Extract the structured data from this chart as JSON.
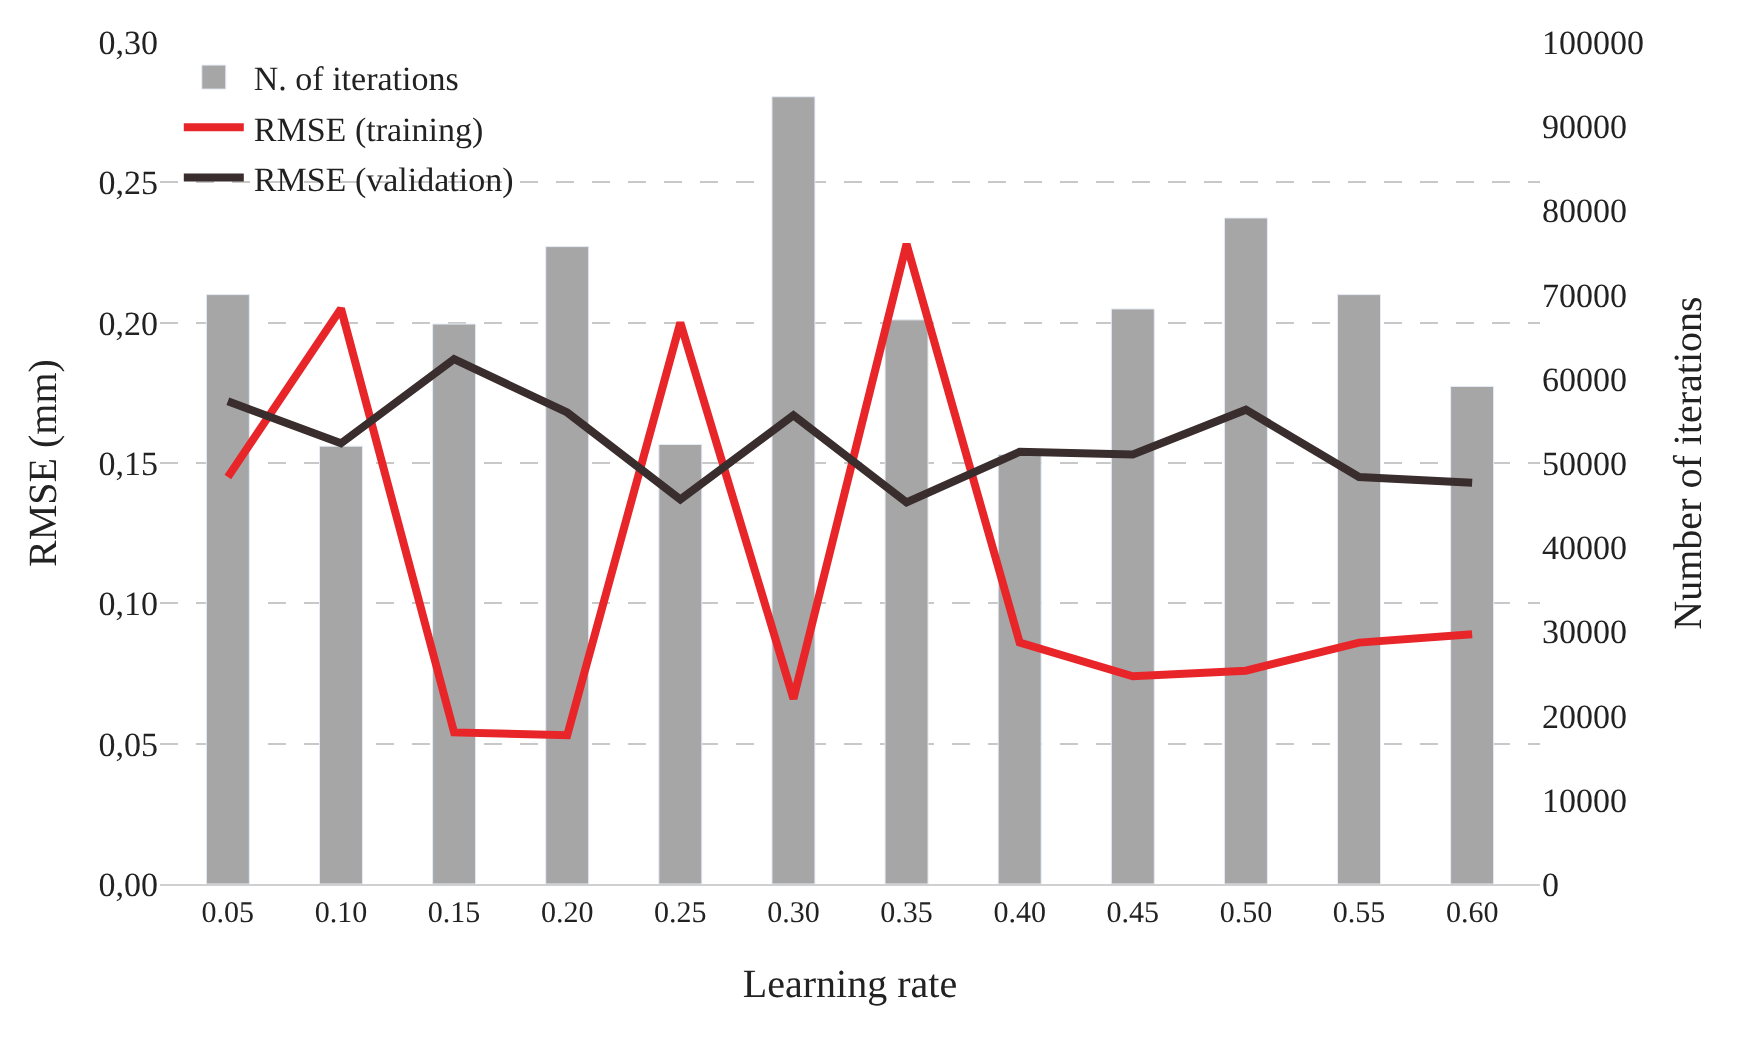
{
  "chart_data": {
    "type": "line",
    "xlabel": "Learning rate",
    "ylabel": "RMSE (mm)",
    "y2label": "Number of iterations",
    "categories": [
      "0.05",
      "0.10",
      "0.15",
      "0.20",
      "0.25",
      "0.30",
      "0.35",
      "0.40",
      "0.45",
      "0.50",
      "0.55",
      "0.60"
    ],
    "series": [
      {
        "name": "N. of iterations",
        "type": "bar",
        "axis": "y2",
        "color": "#a6a6a6",
        "values": [
          70000,
          52000,
          66500,
          75700,
          52200,
          93500,
          67000,
          51000,
          68300,
          79100,
          70000,
          59100
        ]
      },
      {
        "name": "RMSE (training)",
        "color": "#e8262a",
        "values": [
          0.145,
          0.205,
          0.054,
          0.053,
          0.2,
          0.066,
          0.228,
          0.086,
          0.074,
          0.076,
          0.086,
          0.089
        ]
      },
      {
        "name": "RMSE (validation)",
        "color": "#3a2d2d",
        "values": [
          0.172,
          0.157,
          0.187,
          0.168,
          0.137,
          0.167,
          0.136,
          0.154,
          0.153,
          0.169,
          0.145,
          0.143
        ]
      }
    ],
    "ylim": [
      0,
      0.3
    ],
    "yticks": [
      {
        "value": 0,
        "label": "0,00"
      },
      {
        "value": 0.05,
        "label": "0,05"
      },
      {
        "value": 0.1,
        "label": "0,10"
      },
      {
        "value": 0.15,
        "label": "0,15"
      },
      {
        "value": 0.2,
        "label": "0,20"
      },
      {
        "value": 0.25,
        "label": "0,25"
      },
      {
        "value": 0.3,
        "label": "0,30"
      }
    ],
    "y2lim": [
      0,
      100000
    ],
    "y2ticks": [
      0,
      10000,
      20000,
      30000,
      40000,
      50000,
      60000,
      70000,
      80000,
      90000,
      100000
    ],
    "grid": "y",
    "legend": "top left",
    "line_style": "solid",
    "marker": "none"
  }
}
